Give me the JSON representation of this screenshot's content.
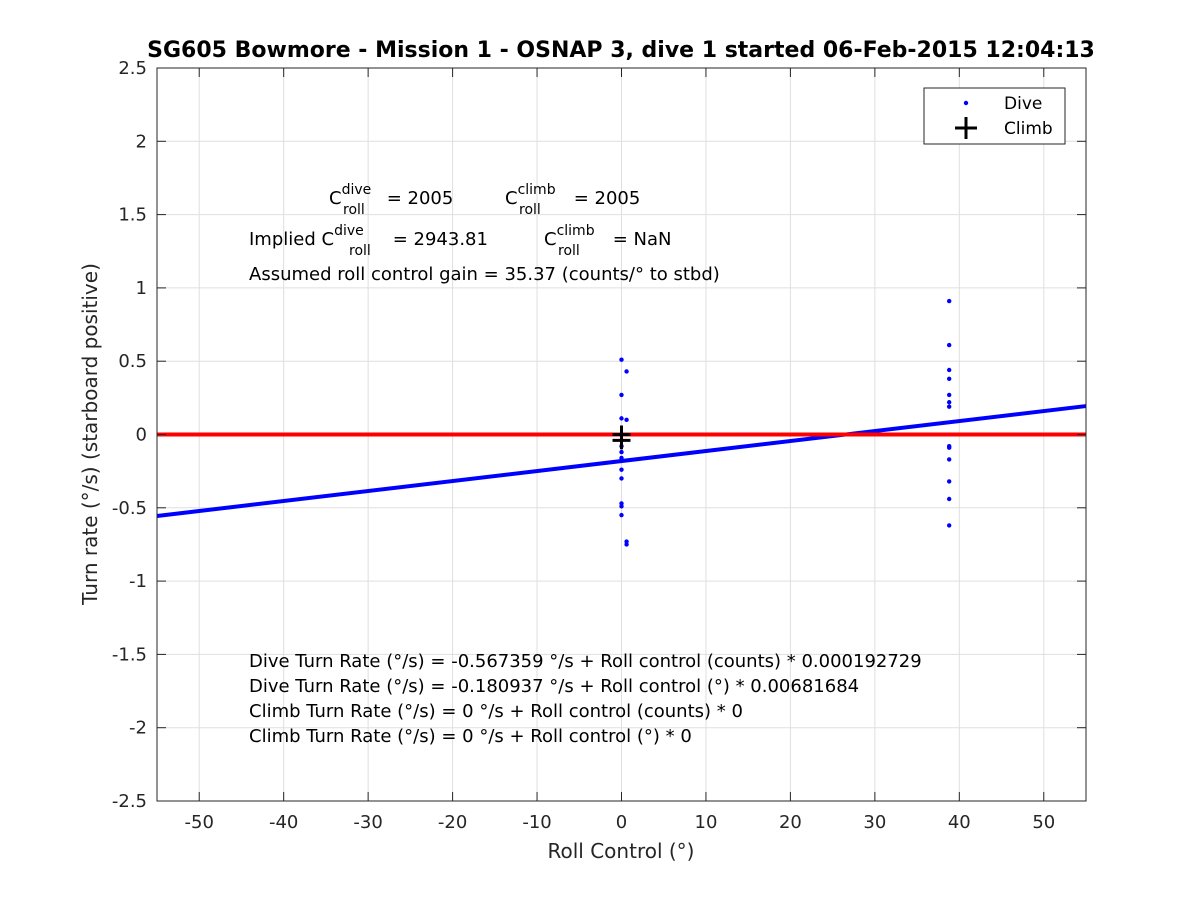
{
  "chart_data": {
    "type": "scatter",
    "title": "SG605 Bowmore - Mission 1 - OSNAP 3, dive 1 started 06-Feb-2015 12:04:13",
    "xlabel": "Roll Control (°)",
    "ylabel": "Turn rate (°/s) (starboard positive)",
    "xlim": [
      -55,
      55
    ],
    "ylim": [
      -2.5,
      2.5
    ],
    "xticks": [
      -50,
      -40,
      -30,
      -20,
      -10,
      0,
      10,
      20,
      30,
      40,
      50
    ],
    "yticks": [
      -2.5,
      -2,
      -1.5,
      -1,
      -0.5,
      0,
      0.5,
      1,
      1.5,
      2,
      2.5
    ],
    "grid": true,
    "legend_position": "top-right",
    "series": [
      {
        "name": "Dive",
        "marker": "dot",
        "color": "#0000ff",
        "points": [
          [
            0.0,
            0.51
          ],
          [
            0.6,
            0.43
          ],
          [
            0.0,
            0.27
          ],
          [
            0.0,
            0.11
          ],
          [
            0.6,
            0.1
          ],
          [
            0.0,
            -0.04
          ],
          [
            0.0,
            -0.08
          ],
          [
            0.0,
            -0.12
          ],
          [
            0.0,
            -0.16
          ],
          [
            0.0,
            -0.24
          ],
          [
            0.0,
            -0.3
          ],
          [
            0.0,
            -0.47
          ],
          [
            0.0,
            -0.49
          ],
          [
            0.0,
            -0.55
          ],
          [
            0.6,
            -0.73
          ],
          [
            0.6,
            -0.75
          ],
          [
            38.8,
            0.91
          ],
          [
            38.8,
            0.61
          ],
          [
            38.8,
            0.44
          ],
          [
            38.8,
            0.38
          ],
          [
            38.8,
            0.27
          ],
          [
            38.8,
            0.22
          ],
          [
            38.8,
            0.19
          ],
          [
            38.8,
            -0.08
          ],
          [
            38.8,
            -0.09
          ],
          [
            38.8,
            -0.17
          ],
          [
            38.8,
            -0.32
          ],
          [
            38.8,
            -0.44
          ],
          [
            38.8,
            -0.62
          ]
        ]
      },
      {
        "name": "Climb",
        "marker": "plus",
        "color": "#000000",
        "points": [
          [
            0.0,
            0.0
          ],
          [
            0.0,
            -0.04
          ]
        ]
      }
    ],
    "lines": [
      {
        "label": "dive fit",
        "color": "#0000ff",
        "intercept": -0.180937,
        "slope": 0.00681684
      },
      {
        "label": "climb fit",
        "color": "#ff0000",
        "intercept": 0,
        "slope": 0
      }
    ],
    "annotations": {
      "c_dive_prefix": "C",
      "c_dive_sup": "dive",
      "c_dive_sub": "roll",
      "c_dive_value": " = 2005",
      "c_climb_prefix": "C",
      "c_climb_sup": "climb",
      "c_climb_sub": "roll",
      "c_climb_value": " = 2005",
      "implied_prefix": "Implied C",
      "implied_dive_sup": "dive",
      "implied_dive_sub": "roll",
      "implied_dive_value": " = 2943.81",
      "implied_climb_prefix": "C",
      "implied_climb_sup": "climb",
      "implied_climb_sub": "roll",
      "implied_climb_value": " = NaN",
      "gain_text": "Assumed roll control gain = 35.37 (counts/° to stbd)",
      "fit_lines": [
        "Dive Turn Rate (°/s) = -0.567359 °/s + Roll control (counts) * 0.000192729",
        "Dive Turn Rate (°/s) = -0.180937 °/s + Roll control (°) * 0.00681684",
        "Climb Turn Rate (°/s) = 0 °/s + Roll control (counts) * 0",
        "Climb Turn Rate (°/s) = 0 °/s + Roll control (°) * 0"
      ]
    }
  }
}
